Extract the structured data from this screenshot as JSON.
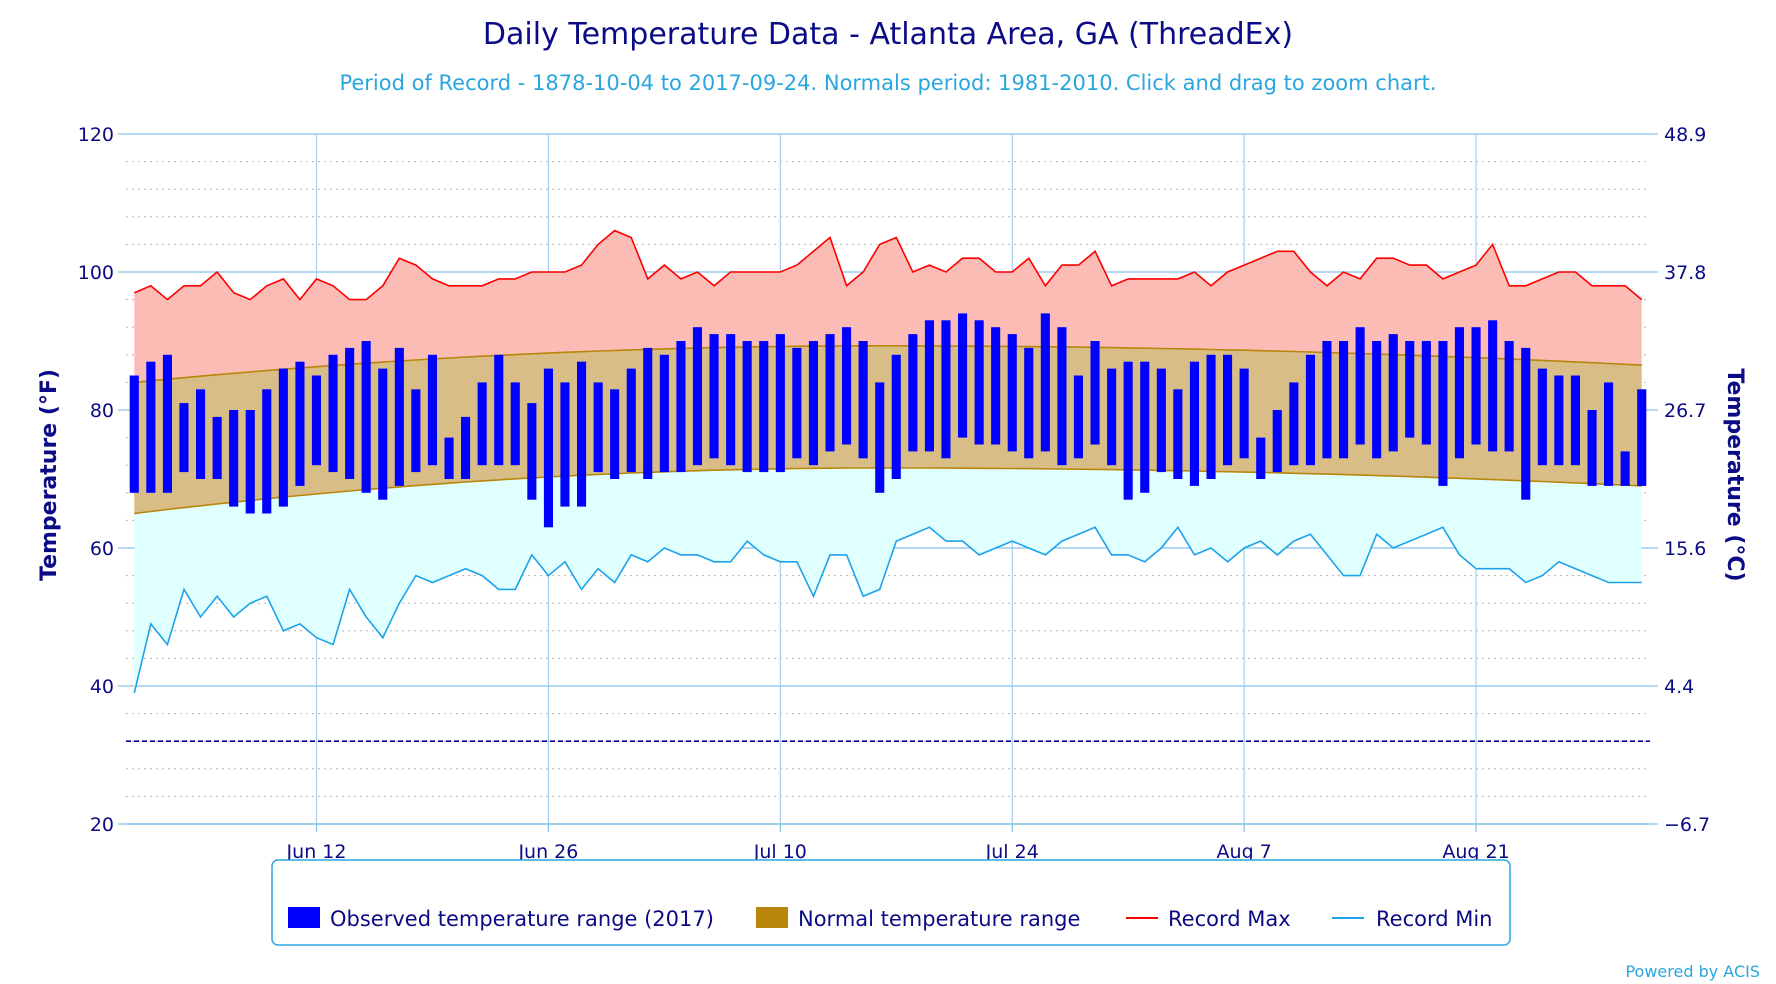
{
  "chart_data": {
    "type": "bar",
    "title": "Daily Temperature Data - Atlanta Area, GA (ThreadEx)",
    "subtitle": "Period of Record - 1878-10-04 to 2017-09-24. Normals period: 1981-2010. Click and drag to zoom chart.",
    "ylabel": "Temperature (°F)",
    "ylabel_right": "Temperature (°C)",
    "ylim": [
      20,
      120
    ],
    "yticks": [
      20,
      40,
      60,
      80,
      100,
      120
    ],
    "yticks_right": [
      "−6.7",
      "4.4",
      "15.6",
      "26.7",
      "37.8",
      "48.9"
    ],
    "x_start": "Jun 1",
    "xticks": [
      {
        "day": 11,
        "label": "Jun 12"
      },
      {
        "day": 25,
        "label": "Jun 26"
      },
      {
        "day": 39,
        "label": "Jul 10"
      },
      {
        "day": 53,
        "label": "Jul 24"
      },
      {
        "day": 67,
        "label": "Aug 7"
      },
      {
        "day": 81,
        "label": "Aug 21"
      }
    ],
    "freezing_line_f": 32,
    "grid": true,
    "legend_position": "bottom",
    "series": [
      {
        "name": "Observed temperature range (2017)",
        "color": "#0000ff",
        "high": [
          85,
          87,
          88,
          81,
          83,
          79,
          80,
          80,
          83,
          86,
          87,
          85,
          88,
          89,
          90,
          86,
          89,
          83,
          88,
          76,
          79,
          84,
          88,
          84,
          81,
          86,
          84,
          87,
          84,
          83,
          86,
          89,
          88,
          90,
          92,
          91,
          91,
          90,
          90,
          91,
          89,
          90,
          91,
          92,
          90,
          84,
          88,
          91,
          93,
          93,
          94,
          93,
          92,
          91,
          89,
          94,
          92,
          85,
          90,
          86,
          87,
          87,
          86,
          83,
          87,
          88,
          88,
          86,
          76,
          80,
          84,
          88,
          90,
          90,
          92,
          90,
          91,
          90,
          90,
          90,
          92,
          92,
          93,
          90,
          89,
          86,
          85,
          85,
          80,
          84,
          74,
          83
        ],
        "low": [
          68,
          68,
          68,
          71,
          70,
          70,
          66,
          65,
          65,
          66,
          69,
          72,
          71,
          70,
          68,
          67,
          69,
          71,
          72,
          70,
          70,
          72,
          72,
          72,
          67,
          63,
          66,
          66,
          71,
          70,
          71,
          70,
          71,
          71,
          72,
          73,
          72,
          71,
          71,
          71,
          73,
          72,
          74,
          75,
          73,
          68,
          70,
          74,
          74,
          73,
          76,
          75,
          75,
          74,
          73,
          74,
          72,
          73,
          75,
          72,
          67,
          68,
          71,
          70,
          69,
          70,
          72,
          73,
          70,
          71,
          72,
          72,
          73,
          73,
          75,
          73,
          74,
          76,
          75,
          69,
          73,
          75,
          74,
          74,
          67,
          72,
          72,
          72,
          69,
          69,
          69,
          69
        ]
      },
      {
        "name": "Normal temperature range",
        "color": "#b8860b",
        "high_start": 84,
        "high_mid": 89.3,
        "high_end": 86.5,
        "low_start": 65,
        "low_mid": 71.6,
        "low_end": 69
      },
      {
        "name": "Record Max",
        "color": "#ff0000",
        "values": [
          97,
          98,
          96,
          98,
          98,
          100,
          97,
          96,
          98,
          99,
          96,
          99,
          98,
          96,
          96,
          98,
          102,
          101,
          99,
          98,
          98,
          98,
          99,
          99,
          100,
          100,
          100,
          101,
          104,
          106,
          105,
          99,
          101,
          99,
          100,
          98,
          100,
          100,
          100,
          100,
          101,
          103,
          105,
          98,
          100,
          104,
          105,
          100,
          101,
          100,
          102,
          102,
          100,
          100,
          102,
          98,
          101,
          101,
          103,
          98,
          99,
          99,
          99,
          99,
          100,
          98,
          100,
          101,
          102,
          103,
          103,
          100,
          98,
          100,
          99,
          102,
          102,
          101,
          101,
          99,
          100,
          101,
          104,
          98,
          98,
          99,
          100,
          100,
          98,
          98,
          98,
          96
        ]
      },
      {
        "name": "Record Min",
        "color": "#1ca3ec",
        "values": [
          39,
          49,
          46,
          54,
          50,
          53,
          50,
          52,
          53,
          48,
          49,
          47,
          46,
          54,
          50,
          47,
          52,
          56,
          55,
          56,
          57,
          56,
          54,
          54,
          59,
          56,
          58,
          54,
          57,
          55,
          59,
          58,
          60,
          59,
          59,
          58,
          58,
          61,
          59,
          58,
          58,
          53,
          59,
          59,
          53,
          54,
          61,
          62,
          63,
          61,
          61,
          59,
          60,
          61,
          60,
          59,
          61,
          62,
          63,
          59,
          59,
          58,
          60,
          63,
          59,
          60,
          58,
          60,
          61,
          59,
          61,
          62,
          59,
          56,
          56,
          62,
          60,
          61,
          62,
          63,
          59,
          57,
          57,
          57,
          55,
          56,
          58,
          57,
          56,
          55,
          55,
          55
        ]
      }
    ]
  },
  "legend": {
    "observed": "Observed temperature range (2017)",
    "normal": "Normal temperature range",
    "record_max": "Record Max",
    "record_min": "Record Min"
  },
  "credit": "Powered by ACIS",
  "colors": {
    "observed": "#0000ff",
    "normal_fill": "#d9bd86",
    "normal_line": "#b8860b",
    "record_max_fill": "#fbbcb6",
    "record_max_line": "#ff0000",
    "record_min_fill": "#e0ffff",
    "record_min_line": "#1ca3ec",
    "text": "#0b0b86",
    "freezing": "#00009c"
  }
}
